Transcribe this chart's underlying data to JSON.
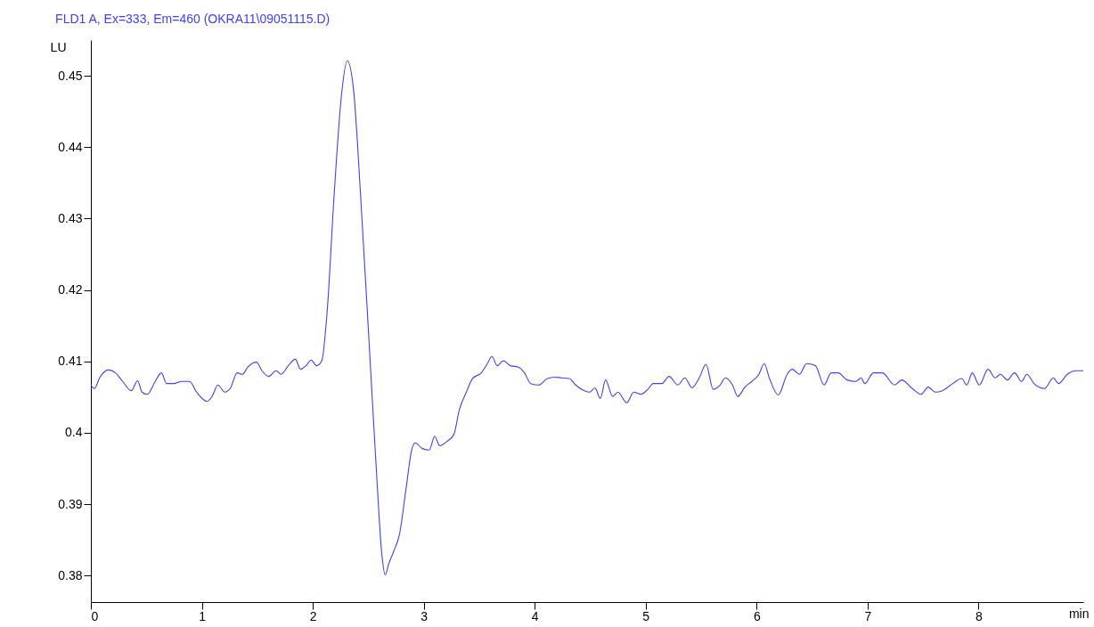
{
  "chart_data": {
    "type": "line",
    "title": "FLD1 A, Ex=333, Em=460 (OKRA11\\09051115.D)",
    "xlabel": "min",
    "ylabel": "LU",
    "xlim": [
      0,
      8.944
    ],
    "ylim": [
      0.3763,
      0.455
    ],
    "xticks": [
      0,
      1,
      2,
      3,
      4,
      5,
      6,
      7,
      8
    ],
    "yticks": [
      0.38,
      0.39,
      0.4,
      0.41,
      0.42,
      0.43,
      0.44,
      0.45
    ],
    "grid": false,
    "series": [
      {
        "color": "#4040ff",
        "x": [
          0,
          0.032,
          0.079,
          0.159,
          0.222,
          0.286,
          0.365,
          0.421,
          0.461,
          0.508,
          0.58,
          0.635,
          0.683,
          0.747,
          0.818,
          0.889,
          0.953,
          1.048,
          1.096,
          1.144,
          1.207,
          1.255,
          1.319,
          1.366,
          1.414,
          1.493,
          1.541,
          1.604,
          1.668,
          1.716,
          1.779,
          1.843,
          1.89,
          1.938,
          1.986,
          2.033,
          2.081,
          2.129,
          2.192,
          2.256,
          2.311,
          2.367,
          2.431,
          2.51,
          2.574,
          2.621,
          2.653,
          2.685,
          2.732,
          2.78,
          2.844,
          2.891,
          2.923,
          2.987,
          3.05,
          3.098,
          3.145,
          3.209,
          3.272,
          3.32,
          3.384,
          3.439,
          3.519,
          3.574,
          3.614,
          3.662,
          3.717,
          3.781,
          3.852,
          3.908,
          3.963,
          4.035,
          4.114,
          4.178,
          4.241,
          4.313,
          4.369,
          4.448,
          4.496,
          4.543,
          4.591,
          4.639,
          4.702,
          4.75,
          4.829,
          4.893,
          4.956,
          5.02,
          5.068,
          5.147,
          5.211,
          5.29,
          5.353,
          5.417,
          5.48,
          5.544,
          5.608,
          5.671,
          5.719,
          5.782,
          5.83,
          5.894,
          5.957,
          6.021,
          6.068,
          6.116,
          6.195,
          6.275,
          6.322,
          6.386,
          6.45,
          6.529,
          6.608,
          6.672,
          6.735,
          6.815,
          6.894,
          6.942,
          6.974,
          7.053,
          7.133,
          7.244,
          7.307,
          7.403,
          7.482,
          7.546,
          7.609,
          7.673,
          7.768,
          7.847,
          7.895,
          7.943,
          8.006,
          8.086,
          8.149,
          8.197,
          8.26,
          8.324,
          8.388,
          8.435,
          8.499,
          8.594,
          8.674,
          8.721,
          8.8,
          8.88,
          8.944
        ],
        "values": [
          0.4067,
          0.4062,
          0.4077,
          0.4088,
          0.4084,
          0.4072,
          0.4059,
          0.4073,
          0.4057,
          0.4054,
          0.4072,
          0.4084,
          0.4069,
          0.4069,
          0.4072,
          0.4072,
          0.4057,
          0.4044,
          0.4052,
          0.4067,
          0.4057,
          0.4062,
          0.4084,
          0.4082,
          0.4092,
          0.4099,
          0.4087,
          0.4079,
          0.4087,
          0.4082,
          0.4094,
          0.4103,
          0.4089,
          0.4094,
          0.4102,
          0.4094,
          0.4101,
          0.4169,
          0.4332,
          0.4469,
          0.4521,
          0.4481,
          0.4332,
          0.4119,
          0.3945,
          0.3832,
          0.3801,
          0.3817,
          0.3835,
          0.3857,
          0.3926,
          0.3976,
          0.3986,
          0.3978,
          0.3976,
          0.3995,
          0.3982,
          0.3988,
          0.3998,
          0.4032,
          0.4057,
          0.4076,
          0.4084,
          0.4097,
          0.4107,
          0.4094,
          0.4101,
          0.4094,
          0.4092,
          0.4084,
          0.4069,
          0.4067,
          0.4076,
          0.4078,
          0.4077,
          0.4076,
          0.4067,
          0.4059,
          0.4057,
          0.4063,
          0.4048,
          0.4074,
          0.4051,
          0.4057,
          0.4042,
          0.4057,
          0.4054,
          0.4061,
          0.4069,
          0.4069,
          0.4079,
          0.4067,
          0.4077,
          0.4063,
          0.4076,
          0.4096,
          0.4061,
          0.4067,
          0.4077,
          0.4067,
          0.4051,
          0.4064,
          0.4072,
          0.4082,
          0.4097,
          0.4076,
          0.4053,
          0.4082,
          0.4089,
          0.4082,
          0.4097,
          0.4094,
          0.4067,
          0.4084,
          0.4084,
          0.4074,
          0.4072,
          0.4077,
          0.4069,
          0.4084,
          0.4084,
          0.4067,
          0.4074,
          0.4062,
          0.4054,
          0.4064,
          0.4057,
          0.4059,
          0.4069,
          0.4076,
          0.4067,
          0.4084,
          0.4067,
          0.4089,
          0.4077,
          0.4082,
          0.4074,
          0.4084,
          0.4072,
          0.4082,
          0.4069,
          0.4062,
          0.4077,
          0.4069,
          0.4082,
          0.4087,
          0.4087
        ]
      }
    ]
  }
}
